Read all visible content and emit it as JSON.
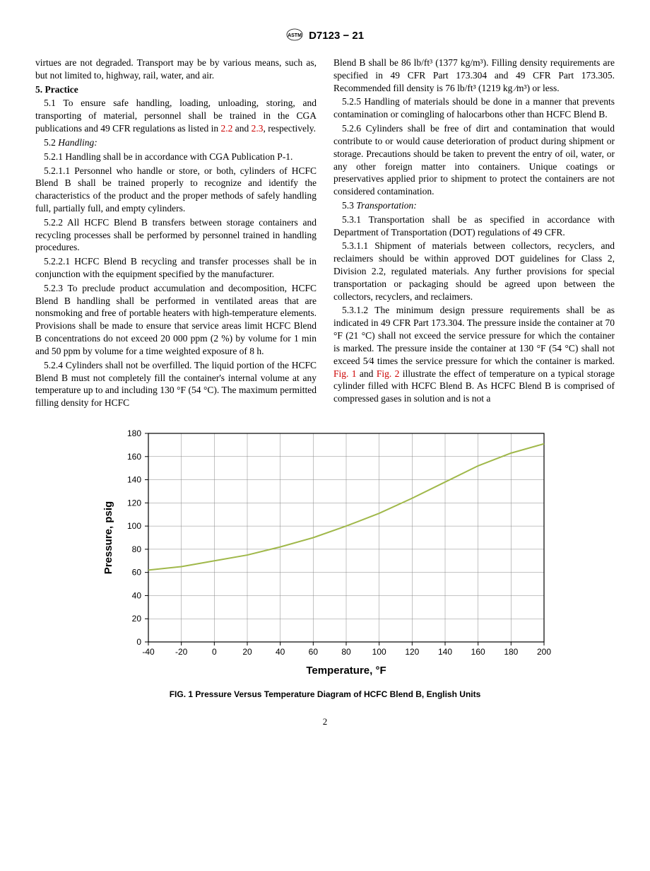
{
  "header": {
    "designation": "D7123 − 21"
  },
  "col1": {
    "p0": "virtues are not degraded. Transport may be by various means, such as, but not limited to, highway, rail, water, and air.",
    "sec5": "5. Practice",
    "p51a": "5.1 To ensure safe handling, loading, unloading, storing, and transporting of material, personnel shall be trained in the CGA publications and 49 CFR regulations as listed in ",
    "link22": "2.2",
    "p51b": " and ",
    "link23": "2.3",
    "p51c": ", respectively.",
    "p52h": "5.2 ",
    "p52i": "Handling:",
    "p521": "5.2.1 Handling shall be in accordance with CGA Publication P-1.",
    "p5211": "5.2.1.1 Personnel who handle or store, or both, cylinders of HCFC Blend B shall be trained properly to recognize and identify the characteristics of the product and the proper methods of safely handling full, partially full, and empty cylinders.",
    "p522": "5.2.2 All HCFC Blend B transfers between storage containers and recycling processes shall be performed by personnel trained in handling procedures.",
    "p5221": "5.2.2.1 HCFC Blend B recycling and transfer processes shall be in conjunction with the equipment specified by the manufacturer.",
    "p523": "5.2.3 To preclude product accumulation and decomposition, HCFC Blend B handling shall be performed in ventilated areas that are nonsmoking and free of portable heaters with high-temperature elements. Provisions shall be made to ensure that service areas limit HCFC Blend B concentrations do not exceed 20 000 ppm (2 %) by volume for 1 min and 50 ppm by volume for a time weighted exposure of 8 h.",
    "p524": "5.2.4 Cylinders shall not be overfilled. The liquid portion of the HCFC Blend B must not completely fill the container's internal volume at any temperature up to and including 130 °F (54 °C). The maximum permitted filling density for HCFC"
  },
  "col2": {
    "p524b": "Blend B shall be 86 lb/ft³ (1377 kg/m³). Filling density requirements are specified in 49 CFR Part 173.304 and 49 CFR Part 173.305. Recommended fill density is 76 lb/ft³ (1219 kg ⁄m³) or less.",
    "p525": "5.2.5 Handling of materials should be done in a manner that prevents contamination or comingling of halocarbons other than HCFC Blend B.",
    "p526": "5.2.6 Cylinders shall be free of dirt and contamination that would contribute to or would cause deterioration of product during shipment or storage. Precautions should be taken to prevent the entry of oil, water, or any other foreign matter into containers. Unique coatings or preservatives applied prior to shipment to protect the containers are not considered contamination.",
    "p53h": "5.3 ",
    "p53i": "Transportation:",
    "p531": "5.3.1 Transportation shall be as specified in accordance with Department of Transportation (DOT) regulations of 49 CFR.",
    "p5311": "5.3.1.1 Shipment of materials between collectors, recyclers, and reclaimers should be within approved DOT guidelines for Class 2, Division 2.2, regulated materials. Any further provisions for special transportation or packaging should be agreed upon between the collectors, recyclers, and reclaimers.",
    "p5312a": "5.3.1.2 The minimum design pressure requirements shall be as indicated in 49 CFR Part 173.304. The pressure inside the container at 70 °F (21 °C) shall not exceed the service pressure for which the container is marked. The pressure inside the container at 130 °F (54 °C) shall not exceed 5⁄4 times the service pressure for which the container is marked. ",
    "linkF1": "Fig. 1",
    "p5312b": " and ",
    "linkF2": "Fig. 2",
    "p5312c": " illustrate the effect of temperature on a typical storage cylinder filled with HCFC Blend B. As HCFC Blend B is comprised of compressed gases in solution and is not a"
  },
  "chart": {
    "type": "line",
    "caption": "FIG. 1 Pressure Versus Temperature Diagram of HCFC Blend B, English Units",
    "xlabel": "Temperature, °F",
    "ylabel": "Pressure, psig",
    "xlim": [
      -40,
      200
    ],
    "ylim": [
      0,
      180
    ],
    "xticks": [
      -40,
      -20,
      0,
      20,
      40,
      60,
      80,
      100,
      120,
      140,
      160,
      180,
      200
    ],
    "yticks": [
      0,
      20,
      40,
      60,
      80,
      100,
      120,
      140,
      160,
      180
    ],
    "line_color": "#a0b84a",
    "line_width": 2,
    "grid_color": "#888888",
    "axis_color": "#000000",
    "background": "#ffffff",
    "label_fontsize": 15,
    "tick_fontsize": 12,
    "data": [
      [
        -40,
        62
      ],
      [
        -20,
        65
      ],
      [
        0,
        70
      ],
      [
        20,
        75
      ],
      [
        40,
        82
      ],
      [
        60,
        90
      ],
      [
        80,
        100
      ],
      [
        100,
        111
      ],
      [
        120,
        124
      ],
      [
        140,
        138
      ],
      [
        160,
        152
      ],
      [
        180,
        163
      ],
      [
        200,
        171
      ]
    ]
  },
  "page_number": "2"
}
